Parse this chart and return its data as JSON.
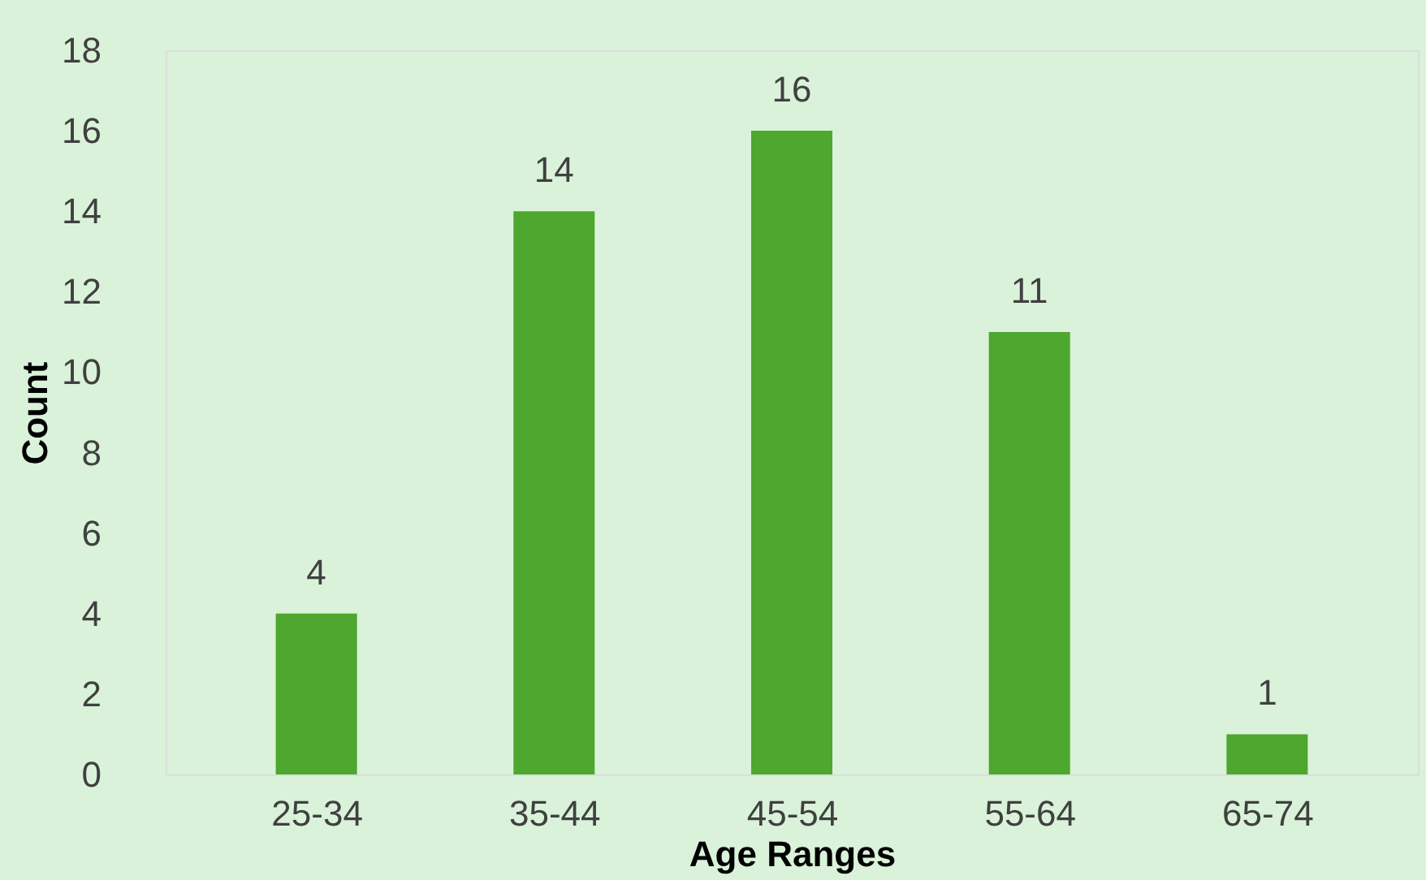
{
  "chart_data": {
    "type": "bar",
    "xlabel": "Age Ranges",
    "ylabel": "Count",
    "categories": [
      "25-34",
      "35-44",
      "45-54",
      "55-64",
      "65-74"
    ],
    "values": [
      4,
      14,
      16,
      11,
      1
    ],
    "color": "#4ea72e",
    "ylim": [
      0,
      18
    ],
    "yticks": [
      0,
      2,
      4,
      6,
      8,
      10,
      12,
      14,
      16,
      18
    ],
    "grid": false,
    "data_labels": true
  }
}
